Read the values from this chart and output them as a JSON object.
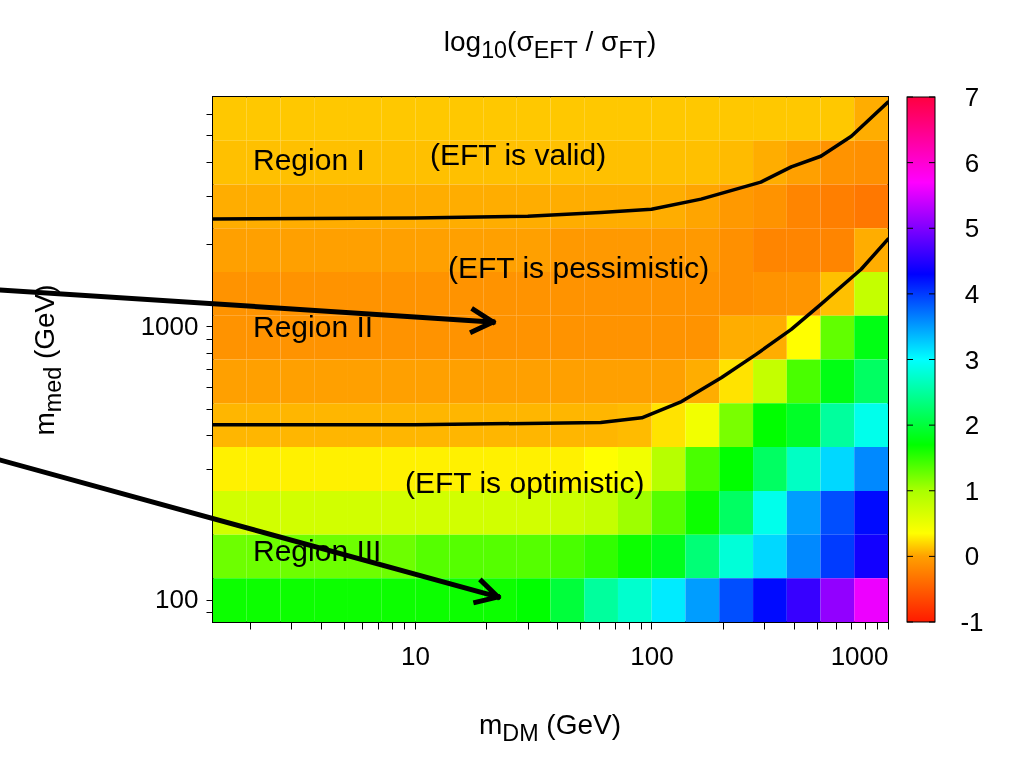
{
  "chart_data": {
    "type": "heatmap",
    "title": "log$_{10}$(σ$_{EFT}$ / σ$_{FT}$)",
    "xlabel": "m$_{DM}$ (GeV)",
    "ylabel": "m$_{med}$ (GeV)",
    "log": "xy",
    "xlim": [
      1.4,
      1000
    ],
    "ylim": [
      83,
      6900
    ],
    "xticks": [
      {
        "value": 2,
        "label": null
      },
      {
        "value": 3,
        "label": null
      },
      {
        "value": 4,
        "label": null
      },
      {
        "value": 5,
        "label": null
      },
      {
        "value": 6,
        "label": null
      },
      {
        "value": 7,
        "label": null
      },
      {
        "value": 8,
        "label": null
      },
      {
        "value": 9,
        "label": null
      },
      10,
      {
        "value": 20,
        "label": null
      },
      {
        "value": 30,
        "label": null
      },
      {
        "value": 40,
        "label": null
      },
      {
        "value": 50,
        "label": null
      },
      {
        "value": 60,
        "label": null
      },
      {
        "value": 70,
        "label": null
      },
      {
        "value": 80,
        "label": null
      },
      {
        "value": 90,
        "label": null
      },
      100,
      {
        "value": 200,
        "label": null
      },
      {
        "value": 300,
        "label": null
      },
      {
        "value": 400,
        "label": null
      },
      {
        "value": 500,
        "label": null
      },
      {
        "value": 600,
        "label": null
      },
      {
        "value": 700,
        "label": null
      },
      {
        "value": 800,
        "label": null
      },
      {
        "value": 900,
        "label": null
      },
      1000
    ],
    "yticks": [
      {
        "value": 90,
        "label": null
      },
      100,
      {
        "value": 200,
        "label": null
      },
      {
        "value": 300,
        "label": null
      },
      {
        "value": 400,
        "label": null
      },
      {
        "value": 500,
        "label": null
      },
      {
        "value": 600,
        "label": null
      },
      {
        "value": 700,
        "label": null
      },
      {
        "value": 800,
        "label": null
      },
      {
        "value": 900,
        "label": null
      },
      1000,
      {
        "value": 2000,
        "label": null
      },
      {
        "value": 3000,
        "label": null
      },
      {
        "value": 4000,
        "label": null
      },
      {
        "value": 5000,
        "label": null
      },
      {
        "value": 6000,
        "label": null
      }
    ],
    "clim": [
      -1,
      7
    ],
    "cticks": [
      -1,
      0,
      1,
      2,
      3,
      4,
      5,
      6,
      7
    ],
    "x": [
      1.65,
      2.29,
      3.18,
      4.42,
      6.14,
      8.53,
      11.9,
      16.5,
      22.9,
      31.7,
      44.1,
      61.2,
      85.1,
      118,
      164,
      228,
      317,
      440,
      611,
      848
    ],
    "y": [
      5740,
      3970,
      2750,
      1900,
      1315,
      910,
      630,
      436,
      301,
      208,
      144,
      99.8
    ],
    "cells": [
      [
        0.15,
        0.15,
        0.15,
        0.15,
        0.15,
        0.15,
        0.15,
        0.15,
        0.15,
        0.15,
        0.15,
        0.15,
        0.15,
        0.15,
        0.15,
        0.15,
        0.15,
        0.15,
        0.15,
        0.05
      ],
      [
        0.12,
        0.12,
        0.12,
        0.12,
        0.12,
        0.12,
        0.12,
        0.12,
        0.12,
        0.12,
        0.12,
        0.12,
        0.12,
        0.12,
        0.12,
        0.1,
        0.05,
        0,
        -0.1,
        -0.12
      ],
      [
        0.05,
        0.05,
        0.05,
        0.05,
        0.05,
        0.05,
        0.05,
        0.05,
        0.05,
        0.05,
        0.05,
        0.05,
        0.05,
        0.05,
        0.02,
        -0.05,
        -0.1,
        -0.2,
        -0.25,
        -0.3
      ],
      [
        0,
        0,
        0,
        0,
        0,
        0,
        0,
        0,
        0,
        0,
        -0.05,
        -0.05,
        -0.05,
        -0.05,
        -0.05,
        -0.12,
        -0.2,
        -0.2,
        -0.2,
        0.05
      ],
      [
        -0.1,
        -0.1,
        -0.1,
        -0.1,
        -0.1,
        -0.1,
        -0.1,
        -0.1,
        -0.1,
        -0.1,
        -0.1,
        -0.1,
        -0.1,
        -0.1,
        -0.1,
        -0.12,
        -0.1,
        -0.08,
        0.12,
        0.8
      ],
      [
        -0.1,
        -0.1,
        -0.1,
        -0.1,
        -0.1,
        -0.1,
        -0.1,
        -0.1,
        -0.1,
        -0.1,
        -0.1,
        -0.1,
        -0.1,
        -0.1,
        -0.1,
        0.05,
        0.05,
        0.35,
        1.3,
        1.8
      ],
      [
        0,
        0,
        0,
        0,
        0,
        0,
        0,
        0,
        0,
        0,
        0,
        0,
        0,
        0,
        0.05,
        0.25,
        0.8,
        1.4,
        1.8,
        2.2
      ],
      [
        0.08,
        0.08,
        0.08,
        0.08,
        0.08,
        0.08,
        0.08,
        0.08,
        0.08,
        0.08,
        0.08,
        0.08,
        0.1,
        0.25,
        0.45,
        1.2,
        1.7,
        1.9,
        2.5,
        2.9
      ],
      [
        0.3,
        0.3,
        0.3,
        0.3,
        0.3,
        0.3,
        0.3,
        0.3,
        0.3,
        0.3,
        0.3,
        0.35,
        0.45,
        0.9,
        1.4,
        1.7,
        2.2,
        2.7,
        3.2,
        3.6
      ],
      [
        0.7,
        0.7,
        0.7,
        0.7,
        0.7,
        0.7,
        0.7,
        0.7,
        0.7,
        0.7,
        0.75,
        0.8,
        1.05,
        1.35,
        1.65,
        2.2,
        2.9,
        3.5,
        3.9,
        4.25
      ],
      [
        1.25,
        1.25,
        1.25,
        1.25,
        1.25,
        1.25,
        1.35,
        1.35,
        1.35,
        1.35,
        1.4,
        1.5,
        1.65,
        1.85,
        2.3,
        2.8,
        3.2,
        3.6,
        4.0,
        4.4
      ],
      [
        1.65,
        1.65,
        1.65,
        1.65,
        1.65,
        1.65,
        1.65,
        1.65,
        1.65,
        1.7,
        2.0,
        2.5,
        2.75,
        3.1,
        3.5,
        3.9,
        4.25,
        4.6,
        5.1,
        5.6
      ]
    ],
    "series": [
      {
        "type": "line",
        "color": "#000000",
        "x": [
          1.4,
          10,
          30,
          61,
          100,
          162,
          290,
          390,
          520,
          700,
          1000
        ],
        "values": [
          2470,
          2490,
          2530,
          2610,
          2680,
          2920,
          3370,
          3830,
          4190,
          4960,
          6610
        ]
      },
      {
        "type": "line",
        "color": "#000000",
        "x": [
          1.4,
          10,
          61,
          91,
          134,
          198,
          277,
          390,
          520,
          770,
          1000
        ],
        "values": [
          437,
          437,
          445,
          463,
          531,
          650,
          790,
          975,
          1204,
          1618,
          2084
        ]
      }
    ],
    "annotations": [
      "Region I",
      "(EFT is valid)",
      "(EFT is pessimistic)",
      "Region II",
      "(EFT is optimistic)",
      "Region III"
    ]
  }
}
